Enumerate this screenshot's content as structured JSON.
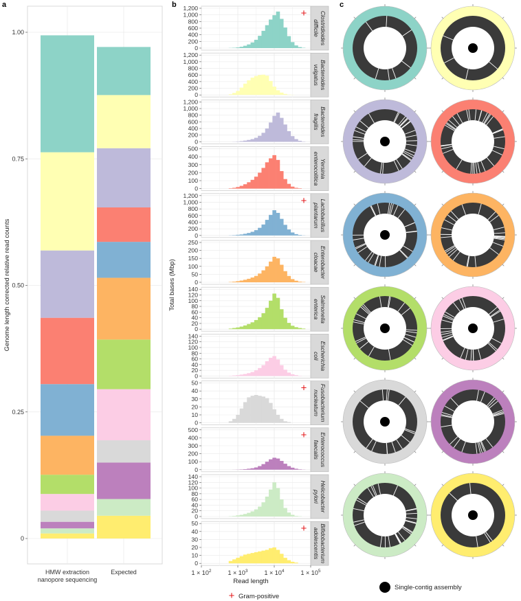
{
  "panel_letters": {
    "a": "a",
    "b": "b",
    "c": "c"
  },
  "colors": [
    "#8dd3c7",
    "#ffffb3",
    "#bebada",
    "#fb8072",
    "#80b1d3",
    "#fdb462",
    "#b3de69",
    "#fccde5",
    "#d9d9d9",
    "#bc80bd",
    "#ccebc5",
    "#ffed6f"
  ],
  "chart_data": [
    {
      "id": "a",
      "type": "bar",
      "stacked": true,
      "ylabel": "Genome length corrected relative read counts",
      "ylim": [
        0,
        1
      ],
      "yticks": [
        "0",
        "0.25",
        "0.50",
        "0.75",
        "1.00"
      ],
      "ytick_values": [
        0,
        0.25,
        0.5,
        0.75,
        1.0
      ],
      "categories": [
        "HMW extraction\nnanopore sequencing",
        "Expected"
      ],
      "category_lines": [
        [
          "HMW extraction",
          "nanopore sequencing"
        ],
        [
          "Expected"
        ]
      ],
      "series": [
        {
          "name": "Clostridioides difficile",
          "values": [
            0.231,
            0.095
          ]
        },
        {
          "name": "Bacteroides vulgatus",
          "values": [
            0.194,
            0.105
          ]
        },
        {
          "name": "Bacteroides fragilis",
          "values": [
            0.133,
            0.117
          ]
        },
        {
          "name": "Yersinia enterocolitica",
          "values": [
            0.131,
            0.068
          ]
        },
        {
          "name": "Lactobacillus plantarum",
          "values": [
            0.102,
            0.071
          ]
        },
        {
          "name": "Enterobacter cloacae",
          "values": [
            0.077,
            0.122
          ]
        },
        {
          "name": "Salmonella enterica",
          "values": [
            0.038,
            0.098
          ]
        },
        {
          "name": "Escherichia coli",
          "values": [
            0.033,
            0.101
          ]
        },
        {
          "name": "Fusobacterium nucleatum",
          "values": [
            0.022,
            0.044
          ]
        },
        {
          "name": "Enterococcus faecalis",
          "values": [
            0.013,
            0.072
          ]
        },
        {
          "name": "Helicobacter pylori",
          "values": [
            0.01,
            0.033
          ]
        },
        {
          "name": "Bifidobacterium adolescentis",
          "values": [
            0.01,
            0.045
          ]
        }
      ]
    },
    {
      "id": "b",
      "type": "bar",
      "subtype": "histogram-facets",
      "xlabel": "Read length",
      "ylabel": "Total bases (Mbp)",
      "xscale": "log",
      "xlim": [
        100,
        100000
      ],
      "xticks": [
        {
          "base": "1 × 10",
          "exp": "2",
          "value": 100
        },
        {
          "base": "1 × 10",
          "exp": "3",
          "value": 1000
        },
        {
          "base": "1 × 10",
          "exp": "4",
          "value": 10000
        },
        {
          "base": "1 × 10",
          "exp": "5",
          "value": 100000
        }
      ],
      "legend": {
        "marker": "+",
        "label": "Gram-positive"
      },
      "bin_centers_log10": [
        2.8,
        2.9,
        3.0,
        3.1,
        3.2,
        3.3,
        3.4,
        3.5,
        3.6,
        3.7,
        3.8,
        3.9,
        4.0,
        4.1,
        4.2,
        4.3,
        4.4,
        4.5,
        4.6,
        4.7,
        4.8
      ],
      "facets": [
        {
          "name_lines": [
            "Clostridioides",
            "difficile"
          ],
          "gram_positive": true,
          "ylim": [
            0,
            1200
          ],
          "yticks": [
            "0",
            "200",
            "400",
            "600",
            "800",
            "1,000",
            "1,200"
          ],
          "values": [
            5,
            10,
            20,
            40,
            70,
            110,
            170,
            250,
            370,
            520,
            690,
            860,
            990,
            1100,
            880,
            620,
            360,
            180,
            80,
            30,
            10
          ]
        },
        {
          "name_lines": [
            "Bacteroides",
            "vulgatus"
          ],
          "gram_positive": false,
          "ylim": [
            0,
            1200
          ],
          "yticks": [
            "0",
            "200",
            "400",
            "600",
            "800",
            "1,000",
            "1,200"
          ],
          "values": [
            20,
            60,
            120,
            220,
            340,
            440,
            520,
            570,
            600,
            610,
            580,
            420,
            250,
            140,
            70,
            30,
            10,
            5,
            0,
            0,
            0
          ]
        },
        {
          "name_lines": [
            "Bacteroides",
            "fragilis"
          ],
          "gram_positive": false,
          "ylim": [
            0,
            1200
          ],
          "yticks": [
            "0",
            "200",
            "400",
            "600",
            "800",
            "1,000",
            "1,200"
          ],
          "values": [
            0,
            5,
            10,
            20,
            35,
            55,
            80,
            120,
            180,
            270,
            400,
            580,
            780,
            880,
            720,
            520,
            320,
            170,
            80,
            30,
            10
          ]
        },
        {
          "name_lines": [
            "Yersinia",
            "enterocolitica"
          ],
          "gram_positive": false,
          "ylim": [
            0,
            500
          ],
          "yticks": [
            "0",
            "100",
            "200",
            "300",
            "400",
            "500"
          ],
          "values": [
            5,
            10,
            20,
            35,
            55,
            80,
            110,
            150,
            200,
            260,
            330,
            380,
            420,
            360,
            220,
            120,
            60,
            25,
            10,
            5,
            0
          ]
        },
        {
          "name_lines": [
            "Lactobacillus",
            "plantarum"
          ],
          "gram_positive": true,
          "ylim": [
            0,
            1200
          ],
          "yticks": [
            "0",
            "200",
            "400",
            "600",
            "800",
            "1,000",
            "1,200"
          ],
          "values": [
            5,
            10,
            20,
            30,
            50,
            75,
            110,
            160,
            230,
            330,
            470,
            620,
            760,
            680,
            500,
            320,
            180,
            90,
            40,
            15,
            5
          ]
        },
        {
          "name_lines": [
            "Enterobacter",
            "cloacae"
          ],
          "gram_positive": false,
          "ylim": [
            0,
            250
          ],
          "yticks": [
            "0",
            "50",
            "100",
            "150",
            "200",
            "250"
          ],
          "values": [
            2,
            4,
            7,
            11,
            16,
            22,
            30,
            40,
            55,
            75,
            100,
            130,
            160,
            150,
            110,
            70,
            40,
            20,
            10,
            4,
            2
          ]
        },
        {
          "name_lines": [
            "Salmonella",
            "enterica"
          ],
          "gram_positive": false,
          "ylim": [
            0,
            140
          ],
          "yticks": [
            "0",
            "20",
            "40",
            "60",
            "80",
            "100",
            "120",
            "140"
          ],
          "values": [
            2,
            4,
            6,
            9,
            13,
            18,
            24,
            32,
            42,
            56,
            75,
            100,
            125,
            110,
            70,
            40,
            22,
            12,
            7,
            4,
            2
          ]
        },
        {
          "name_lines": [
            "Escherichia",
            "coli"
          ],
          "gram_positive": false,
          "ylim": [
            0,
            140
          ],
          "yticks": [
            "0",
            "20",
            "40",
            "60",
            "80",
            "100",
            "120",
            "140"
          ],
          "values": [
            1,
            2,
            3,
            5,
            7,
            10,
            14,
            20,
            28,
            38,
            52,
            64,
            70,
            58,
            38,
            22,
            12,
            6,
            3,
            1,
            0
          ]
        },
        {
          "name_lines": [
            "Fusobacterium",
            "nucleatum"
          ],
          "gram_positive": true,
          "ylim": [
            0,
            50
          ],
          "yticks": [
            "0",
            "10",
            "20",
            "30",
            "40",
            "50"
          ],
          "values": [
            2,
            5,
            10,
            18,
            26,
            32,
            34,
            35,
            34,
            33,
            31,
            25,
            17,
            10,
            5,
            2,
            1,
            0,
            0,
            0,
            0
          ]
        },
        {
          "name_lines": [
            "Enterococcus",
            "faecalis"
          ],
          "gram_positive": true,
          "ylim": [
            0,
            500
          ],
          "yticks": [
            "0",
            "100",
            "200",
            "300",
            "400",
            "500"
          ],
          "values": [
            0,
            1,
            2,
            4,
            7,
            12,
            18,
            28,
            45,
            70,
            100,
            130,
            150,
            140,
            110,
            75,
            45,
            25,
            12,
            5,
            2
          ]
        },
        {
          "name_lines": [
            "Helicobacter",
            "pylori"
          ],
          "gram_positive": false,
          "ylim": [
            0,
            140
          ],
          "yticks": [
            "0",
            "20",
            "40",
            "60",
            "80",
            "100",
            "120",
            "140"
          ],
          "values": [
            1,
            2,
            4,
            6,
            9,
            13,
            18,
            25,
            35,
            50,
            70,
            95,
            120,
            100,
            60,
            30,
            14,
            6,
            2,
            1,
            0
          ]
        },
        {
          "name_lines": [
            "Bifidobacterium",
            "adolescentis"
          ],
          "gram_positive": true,
          "ylim": [
            0,
            50
          ],
          "yticks": [
            "0",
            "10",
            "20",
            "30",
            "40",
            "50"
          ],
          "values": [
            3,
            5,
            7,
            9,
            11,
            12,
            13,
            14,
            15,
            16,
            17,
            19,
            20,
            17,
            12,
            7,
            4,
            2,
            1,
            0,
            0
          ]
        }
      ]
    },
    {
      "id": "c",
      "type": "other",
      "subtype": "circular-contig-maps",
      "legend": {
        "marker": "filled black circle",
        "label": "Single-contig assembly"
      },
      "rings": [
        {
          "single_contig": false,
          "gaps": 7
        },
        {
          "single_contig": true,
          "gaps": 4
        },
        {
          "single_contig": true,
          "gaps": 30
        },
        {
          "single_contig": false,
          "gaps": 34
        },
        {
          "single_contig": true,
          "gaps": 26
        },
        {
          "single_contig": false,
          "gaps": 28
        },
        {
          "single_contig": true,
          "gaps": 22
        },
        {
          "single_contig": true,
          "gaps": 26
        },
        {
          "single_contig": true,
          "gaps": 14
        },
        {
          "single_contig": false,
          "gaps": 24
        },
        {
          "single_contig": false,
          "gaps": 26
        },
        {
          "single_contig": true,
          "gaps": 5
        }
      ]
    }
  ]
}
